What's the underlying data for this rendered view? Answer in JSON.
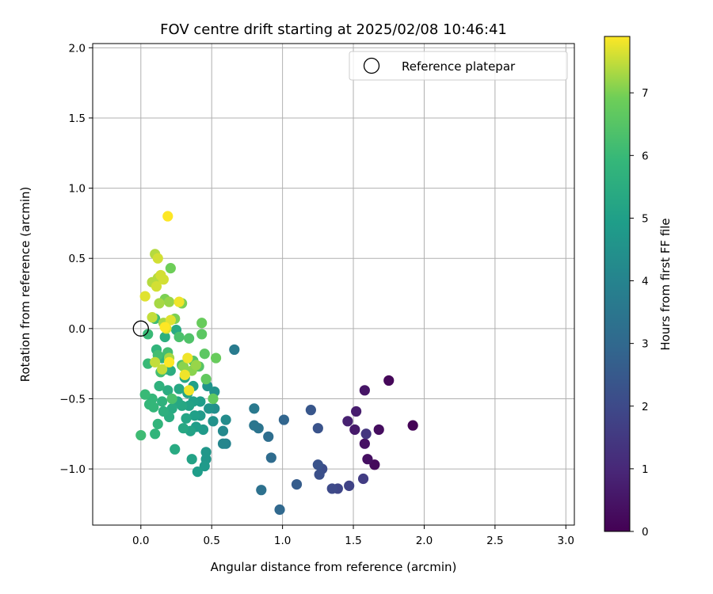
{
  "chart_data": {
    "type": "scatter",
    "title": "FOV centre drift starting at 2025/02/08 10:46:41",
    "xlabel": "Angular distance from reference (arcmin)",
    "ylabel": "Rotation from reference (arcmin)",
    "xlim": [
      -0.34,
      3.06
    ],
    "ylim": [
      -1.4,
      2.03
    ],
    "x_ticks": [
      0.0,
      0.5,
      1.0,
      1.5,
      2.0,
      2.5,
      3.0
    ],
    "x_tick_labels": [
      "0.0",
      "0.5",
      "1.0",
      "1.5",
      "2.0",
      "2.5",
      "3.0"
    ],
    "y_ticks": [
      -1.0,
      -0.5,
      0.0,
      0.5,
      1.0,
      1.5,
      2.0
    ],
    "y_tick_labels": [
      "−1.0",
      "−0.5",
      "0.0",
      "0.5",
      "1.0",
      "1.5",
      "2.0"
    ],
    "grid": true,
    "legend": {
      "position": "top-right",
      "entries": [
        "Reference platepar"
      ]
    },
    "reference": {
      "x": 0.0,
      "y": 0.0,
      "label": "Reference platepar"
    },
    "colorbar": {
      "label": "Hours from first FF file",
      "colormap": "viridis",
      "range": [
        0,
        7.9
      ],
      "ticks": [
        0,
        1,
        2,
        3,
        4,
        5,
        6,
        7
      ],
      "tick_labels": [
        "0",
        "1",
        "2",
        "3",
        "4",
        "5",
        "6",
        "7"
      ]
    },
    "points": [
      {
        "x": 1.92,
        "y": -0.69,
        "h": 0.05
      },
      {
        "x": 1.75,
        "y": -0.37,
        "h": 0.15
      },
      {
        "x": 1.65,
        "y": -0.97,
        "h": 0.2
      },
      {
        "x": 1.68,
        "y": -0.72,
        "h": 0.3
      },
      {
        "x": 1.6,
        "y": -0.93,
        "h": 0.35
      },
      {
        "x": 1.58,
        "y": -0.82,
        "h": 0.4
      },
      {
        "x": 1.58,
        "y": -0.44,
        "h": 0.5
      },
      {
        "x": 1.51,
        "y": -0.72,
        "h": 0.6
      },
      {
        "x": 1.52,
        "y": -0.59,
        "h": 0.7
      },
      {
        "x": 1.46,
        "y": -0.66,
        "h": 0.8
      },
      {
        "x": 1.59,
        "y": -0.75,
        "h": 1.4
      },
      {
        "x": 1.57,
        "y": -1.07,
        "h": 1.6
      },
      {
        "x": 1.47,
        "y": -1.12,
        "h": 1.8
      },
      {
        "x": 1.39,
        "y": -1.14,
        "h": 1.9
      },
      {
        "x": 1.35,
        "y": -1.14,
        "h": 2.0
      },
      {
        "x": 1.28,
        "y": -1.0,
        "h": 2.1
      },
      {
        "x": 1.26,
        "y": -1.04,
        "h": 2.2
      },
      {
        "x": 1.25,
        "y": -0.97,
        "h": 2.3
      },
      {
        "x": 1.25,
        "y": -0.71,
        "h": 2.3
      },
      {
        "x": 1.2,
        "y": -0.58,
        "h": 2.4
      },
      {
        "x": 1.1,
        "y": -1.11,
        "h": 2.6
      },
      {
        "x": 1.01,
        "y": -0.65,
        "h": 2.9
      },
      {
        "x": 0.98,
        "y": -1.29,
        "h": 3.0
      },
      {
        "x": 0.92,
        "y": -0.92,
        "h": 3.1
      },
      {
        "x": 0.9,
        "y": -0.77,
        "h": 3.2
      },
      {
        "x": 0.85,
        "y": -1.15,
        "h": 3.3
      },
      {
        "x": 0.83,
        "y": -0.71,
        "h": 3.4
      },
      {
        "x": 0.8,
        "y": -0.69,
        "h": 3.5
      },
      {
        "x": 0.8,
        "y": -0.57,
        "h": 3.6
      },
      {
        "x": 0.66,
        "y": -0.15,
        "h": 3.7
      },
      {
        "x": 0.6,
        "y": -0.82,
        "h": 4.0
      },
      {
        "x": 0.58,
        "y": -0.82,
        "h": 4.1
      },
      {
        "x": 0.58,
        "y": -0.73,
        "h": 4.2
      },
      {
        "x": 0.6,
        "y": -0.65,
        "h": 4.3
      },
      {
        "x": 0.52,
        "y": -0.57,
        "h": 4.4
      },
      {
        "x": 0.52,
        "y": -0.45,
        "h": 4.5
      },
      {
        "x": 0.51,
        "y": -0.66,
        "h": 4.5
      },
      {
        "x": 0.48,
        "y": -0.57,
        "h": 4.6
      },
      {
        "x": 0.47,
        "y": -0.41,
        "h": 4.6
      },
      {
        "x": 0.46,
        "y": -0.93,
        "h": 4.7
      },
      {
        "x": 0.46,
        "y": -0.88,
        "h": 4.7
      },
      {
        "x": 0.45,
        "y": -0.98,
        "h": 4.8
      },
      {
        "x": 0.44,
        "y": -0.72,
        "h": 4.8
      },
      {
        "x": 0.42,
        "y": -0.62,
        "h": 4.8
      },
      {
        "x": 0.42,
        "y": -0.52,
        "h": 4.9
      },
      {
        "x": 0.4,
        "y": -1.02,
        "h": 4.9
      },
      {
        "x": 0.39,
        "y": -0.7,
        "h": 4.9
      },
      {
        "x": 0.38,
        "y": -0.62,
        "h": 5.0
      },
      {
        "x": 0.37,
        "y": -0.52,
        "h": 5.0
      },
      {
        "x": 0.37,
        "y": -0.41,
        "h": 5.0
      },
      {
        "x": 0.36,
        "y": -0.93,
        "h": 5.1
      },
      {
        "x": 0.35,
        "y": -0.73,
        "h": 5.1
      },
      {
        "x": 0.34,
        "y": -0.55,
        "h": 5.1
      },
      {
        "x": 0.33,
        "y": -0.46,
        "h": 5.2
      },
      {
        "x": 0.32,
        "y": -0.64,
        "h": 5.2
      },
      {
        "x": 0.31,
        "y": -0.35,
        "h": 5.2
      },
      {
        "x": 0.3,
        "y": -0.71,
        "h": 5.3
      },
      {
        "x": 0.29,
        "y": -0.55,
        "h": 5.3
      },
      {
        "x": 0.27,
        "y": -0.43,
        "h": 5.3
      },
      {
        "x": 0.26,
        "y": -0.52,
        "h": 5.3
      },
      {
        "x": 0.25,
        "y": -0.01,
        "h": 5.4
      },
      {
        "x": 0.24,
        "y": -0.86,
        "h": 5.4
      },
      {
        "x": 0.22,
        "y": -0.57,
        "h": 5.4
      },
      {
        "x": 0.21,
        "y": -0.3,
        "h": 5.5
      },
      {
        "x": 0.2,
        "y": -0.63,
        "h": 5.5
      },
      {
        "x": 0.19,
        "y": -0.44,
        "h": 5.5
      },
      {
        "x": 0.18,
        "y": -0.29,
        "h": 5.6
      },
      {
        "x": 0.17,
        "y": -0.06,
        "h": 5.6
      },
      {
        "x": 0.16,
        "y": -0.59,
        "h": 5.6
      },
      {
        "x": 0.15,
        "y": -0.52,
        "h": 5.7
      },
      {
        "x": 0.15,
        "y": -0.21,
        "h": 5.7
      },
      {
        "x": 0.13,
        "y": -0.41,
        "h": 5.7
      },
      {
        "x": 0.12,
        "y": -0.68,
        "h": 5.8
      },
      {
        "x": 0.11,
        "y": -0.15,
        "h": 5.8
      },
      {
        "x": 0.1,
        "y": -0.75,
        "h": 5.8
      },
      {
        "x": 0.09,
        "y": -0.56,
        "h": 5.9
      },
      {
        "x": 0.08,
        "y": -0.5,
        "h": 5.9
      },
      {
        "x": 0.06,
        "y": -0.54,
        "h": 5.9
      },
      {
        "x": 0.05,
        "y": -0.25,
        "h": 6.0
      },
      {
        "x": 0.05,
        "y": -0.04,
        "h": 6.0
      },
      {
        "x": 0.03,
        "y": -0.47,
        "h": 6.0
      },
      {
        "x": 0.0,
        "y": -0.76,
        "h": 6.1
      },
      {
        "x": 0.1,
        "y": 0.07,
        "h": 6.1
      },
      {
        "x": 0.12,
        "y": -0.19,
        "h": 6.2
      },
      {
        "x": 0.14,
        "y": -0.31,
        "h": 6.2
      },
      {
        "x": 0.19,
        "y": -0.17,
        "h": 6.2
      },
      {
        "x": 0.22,
        "y": -0.5,
        "h": 6.3
      },
      {
        "x": 0.27,
        "y": -0.06,
        "h": 6.3
      },
      {
        "x": 0.29,
        "y": -0.26,
        "h": 6.4
      },
      {
        "x": 0.34,
        "y": -0.07,
        "h": 6.4
      },
      {
        "x": 0.37,
        "y": -0.23,
        "h": 6.5
      },
      {
        "x": 0.41,
        "y": -0.27,
        "h": 6.5
      },
      {
        "x": 0.43,
        "y": -0.04,
        "h": 6.6
      },
      {
        "x": 0.45,
        "y": -0.18,
        "h": 6.6
      },
      {
        "x": 0.46,
        "y": -0.36,
        "h": 6.7
      },
      {
        "x": 0.51,
        "y": -0.5,
        "h": 6.7
      },
      {
        "x": 0.53,
        "y": -0.21,
        "h": 6.8
      },
      {
        "x": 0.43,
        "y": 0.04,
        "h": 6.8
      },
      {
        "x": 0.21,
        "y": 0.43,
        "h": 6.9
      },
      {
        "x": 0.17,
        "y": 0.21,
        "h": 7.0
      },
      {
        "x": 0.24,
        "y": 0.07,
        "h": 7.0
      },
      {
        "x": 0.29,
        "y": 0.18,
        "h": 7.0
      },
      {
        "x": 0.3,
        "y": -0.27,
        "h": 7.1
      },
      {
        "x": 0.36,
        "y": -0.3,
        "h": 7.1
      },
      {
        "x": 0.39,
        "y": -0.26,
        "h": 7.2
      },
      {
        "x": 0.2,
        "y": 0.19,
        "h": 7.2
      },
      {
        "x": 0.2,
        "y": -0.21,
        "h": 7.3
      },
      {
        "x": 0.16,
        "y": 0.04,
        "h": 7.3
      },
      {
        "x": 0.13,
        "y": 0.18,
        "h": 7.3
      },
      {
        "x": 0.12,
        "y": 0.36,
        "h": 7.4
      },
      {
        "x": 0.1,
        "y": 0.53,
        "h": 7.4
      },
      {
        "x": 0.08,
        "y": 0.33,
        "h": 7.4
      },
      {
        "x": 0.08,
        "y": 0.08,
        "h": 7.5
      },
      {
        "x": 0.1,
        "y": -0.24,
        "h": 7.5
      },
      {
        "x": 0.15,
        "y": -0.29,
        "h": 7.5
      },
      {
        "x": 0.16,
        "y": 0.35,
        "h": 7.6
      },
      {
        "x": 0.14,
        "y": 0.38,
        "h": 7.6
      },
      {
        "x": 0.12,
        "y": 0.5,
        "h": 7.6
      },
      {
        "x": 0.11,
        "y": 0.3,
        "h": 7.6
      },
      {
        "x": 0.03,
        "y": 0.23,
        "h": 7.7
      },
      {
        "x": 0.18,
        "y": 0.0,
        "h": 7.7
      },
      {
        "x": 0.21,
        "y": 0.06,
        "h": 7.7
      },
      {
        "x": 0.27,
        "y": 0.19,
        "h": 7.8
      },
      {
        "x": 0.31,
        "y": -0.33,
        "h": 7.8
      },
      {
        "x": 0.34,
        "y": -0.44,
        "h": 7.8
      },
      {
        "x": 0.33,
        "y": -0.21,
        "h": 7.8
      },
      {
        "x": 0.2,
        "y": -0.24,
        "h": 7.9
      },
      {
        "x": 0.19,
        "y": 0.8,
        "h": 7.9
      },
      {
        "x": 0.17,
        "y": 0.01,
        "h": 7.9
      }
    ]
  }
}
